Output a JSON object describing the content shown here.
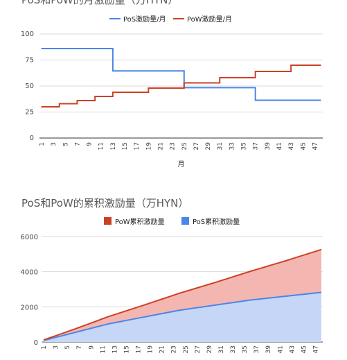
{
  "chart_data": [
    {
      "type": "line",
      "title": "PoS和PoW的月激励量（万HYN）",
      "xlabel": "月",
      "ylabel": "",
      "ylim": [
        0,
        100
      ],
      "yticks": [
        0,
        25,
        50,
        75,
        100
      ],
      "x": [
        1,
        2,
        3,
        4,
        5,
        6,
        7,
        8,
        9,
        10,
        11,
        12,
        13,
        14,
        15,
        16,
        17,
        18,
        19,
        20,
        21,
        22,
        23,
        24,
        25,
        26,
        27,
        28,
        29,
        30,
        31,
        32,
        33,
        34,
        35,
        36,
        37,
        38,
        39,
        40,
        41,
        42,
        43,
        44,
        45,
        46,
        47,
        48
      ],
      "xtick_labels": [
        "1",
        "3",
        "5",
        "7",
        "9",
        "11",
        "13",
        "15",
        "17",
        "19",
        "21",
        "23",
        "25",
        "27",
        "29",
        "31",
        "33",
        "35",
        "37",
        "39",
        "41",
        "43",
        "45",
        "47"
      ],
      "grid": true,
      "legend_position": "top",
      "series": [
        {
          "name": "PoS激励量/月",
          "color": "#4a86e8",
          "values": [
            86,
            86,
            86,
            86,
            86,
            86,
            86,
            86,
            86,
            86,
            86,
            86,
            64.5,
            64.5,
            64.5,
            64.5,
            64.5,
            64.5,
            64.5,
            64.5,
            64.5,
            64.5,
            64.5,
            64.5,
            48.4,
            48.4,
            48.4,
            48.4,
            48.4,
            48.4,
            48.4,
            48.4,
            48.4,
            48.4,
            48.4,
            48.4,
            36.3,
            36.3,
            36.3,
            36.3,
            36.3,
            36.3,
            36.3,
            36.3,
            36.3,
            36.3,
            36.3,
            36.3
          ]
        },
        {
          "name": "PoW激励量/月",
          "color": "#cc4125",
          "values": [
            30,
            30,
            30,
            33,
            33,
            33,
            36,
            36,
            36,
            40,
            40,
            40,
            44,
            44,
            44,
            44,
            44,
            44,
            48,
            48,
            48,
            48,
            48,
            48,
            53,
            53,
            53,
            53,
            53,
            53,
            58,
            58,
            58,
            58,
            58,
            58,
            64,
            64,
            64,
            64,
            64,
            64,
            70,
            70,
            70,
            70,
            70,
            70
          ]
        }
      ]
    },
    {
      "type": "area",
      "stacked": true,
      "title": "PoS和PoW的累积激励量（万HYN）",
      "xlabel": "",
      "ylabel": "",
      "ylim": [
        0,
        6000
      ],
      "yticks": [
        0,
        2000,
        4000,
        6000
      ],
      "x": [
        1,
        2,
        3,
        4,
        5,
        6,
        7,
        8,
        9,
        10,
        11,
        12,
        13,
        14,
        15,
        16,
        17,
        18,
        19,
        20,
        21,
        22,
        23,
        24,
        25,
        26,
        27,
        28,
        29,
        30,
        31,
        32,
        33,
        34,
        35,
        36,
        37,
        38,
        39,
        40,
        41,
        42,
        43,
        44,
        45,
        46,
        47,
        48
      ],
      "xtick_labels": [
        "1",
        "3",
        "5",
        "7",
        "9",
        "11",
        "13",
        "15",
        "17",
        "19",
        "21",
        "23",
        "25",
        "27",
        "29",
        "31",
        "33",
        "35",
        "37",
        "39",
        "41",
        "43",
        "45",
        "47"
      ],
      "grid": true,
      "legend_position": "top",
      "series": [
        {
          "name": "PoW累积激励量",
          "color": "#cc4125",
          "fill": "#f4b6b0",
          "values": [
            30,
            60,
            90,
            123,
            156,
            189,
            225,
            261,
            297,
            337,
            377,
            417,
            461,
            505,
            549,
            593,
            637,
            681,
            729,
            777,
            825,
            873,
            921,
            969,
            1022,
            1075,
            1128,
            1181,
            1234,
            1287,
            1345,
            1403,
            1461,
            1519,
            1577,
            1635,
            1699,
            1763,
            1827,
            1891,
            1955,
            2019,
            2089,
            2159,
            2229,
            2299,
            2369,
            2439
          ]
        },
        {
          "name": "PoS累积激励量",
          "color": "#4a86e8",
          "fill": "#c5d6f7",
          "values": [
            86,
            172,
            258,
            344,
            430,
            516,
            602,
            688,
            774,
            860,
            946,
            1032,
            1096.5,
            1161,
            1225.5,
            1290,
            1354.5,
            1419,
            1483.5,
            1548,
            1612.5,
            1677,
            1741.5,
            1806,
            1854.4,
            1902.8,
            1951.2,
            1999.6,
            2048,
            2096.4,
            2144.8,
            2193.2,
            2241.6,
            2290,
            2338.4,
            2386.8,
            2423.1,
            2459.4,
            2495.7,
            2532,
            2568.3,
            2604.6,
            2640.9,
            2677.2,
            2713.5,
            2749.8,
            2786.1,
            2822.4
          ]
        }
      ]
    }
  ]
}
